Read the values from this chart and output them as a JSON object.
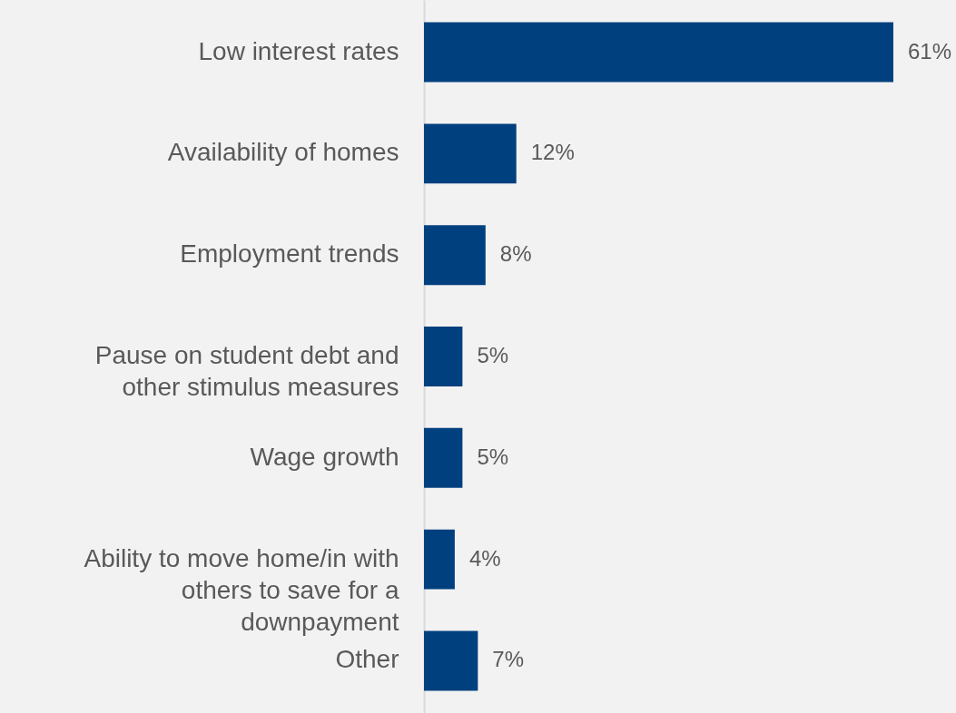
{
  "chart_data": {
    "type": "bar",
    "orientation": "horizontal",
    "categories": [
      "Low interest rates",
      "Availability of homes",
      "Employment trends",
      "Pause on student debt and other stimulus measures",
      "Wage growth",
      "Ability to move home/in with others to save for a downpayment",
      "Other"
    ],
    "values": [
      61,
      12,
      8,
      5,
      5,
      4,
      7
    ],
    "value_labels": [
      "61%",
      "12%",
      "8%",
      "5%",
      "5%",
      "4%",
      "7%"
    ],
    "color": "#00407f"
  }
}
